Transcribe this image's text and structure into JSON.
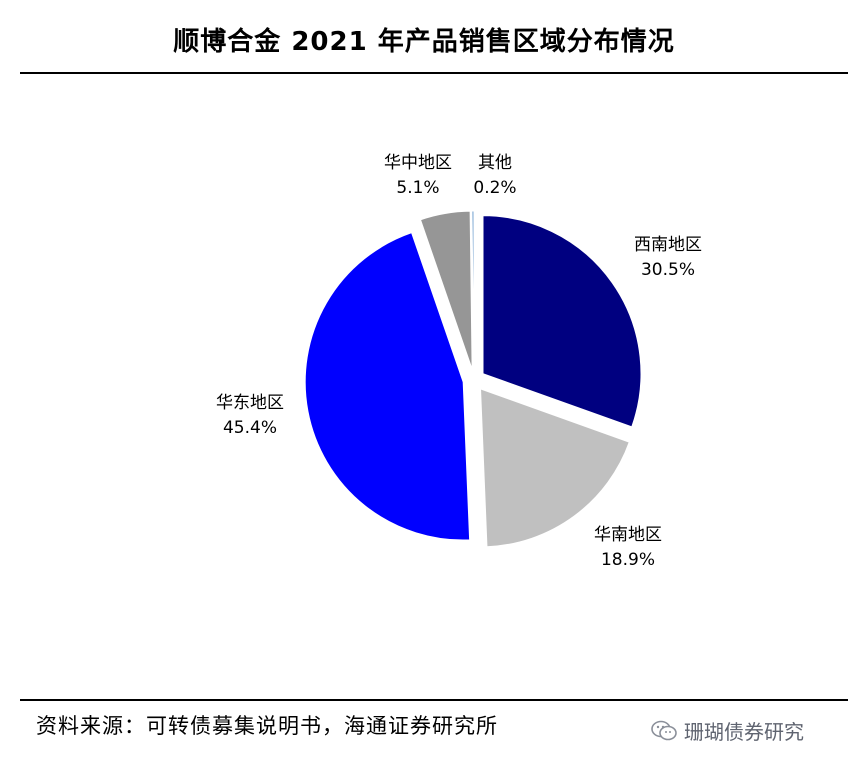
{
  "title": "顺博合金 2021 年产品销售区域分布情况",
  "chart_data": {
    "type": "pie",
    "title": "顺博合金 2021 年产品销售区域分布情况",
    "slices": [
      {
        "label": "西南地区",
        "value": 30.5,
        "value_label": "30.5%",
        "color": "#000080"
      },
      {
        "label": "华南地区",
        "value": 18.9,
        "value_label": "18.9%",
        "color": "#c0c0c0"
      },
      {
        "label": "华东地区",
        "value": 45.4,
        "value_label": "45.4%",
        "color": "#0000ff"
      },
      {
        "label": "华中地区",
        "value": 5.1,
        "value_label": "5.1%",
        "color": "#969696"
      },
      {
        "label": "其他",
        "value": 0.2,
        "value_label": "0.2%",
        "color": "#6699cc"
      }
    ],
    "start_angle": "12 o'clock",
    "direction": "clockwise",
    "exploded": true,
    "legend": "none"
  },
  "source": "资料来源：可转债募集说明书，海通证券研究所",
  "watermark": {
    "icon": "wechat-icon",
    "text": "珊瑚债券研究"
  }
}
